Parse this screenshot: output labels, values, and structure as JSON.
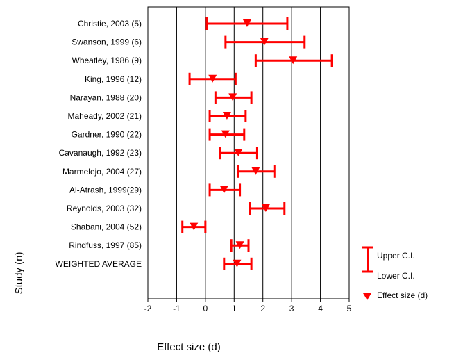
{
  "chart_data": {
    "type": "forest",
    "title": "",
    "xlabel": "Effect size (d)",
    "ylabel": "Study (n)",
    "xlim": [
      -2,
      5
    ],
    "xticks": [
      -2,
      -1,
      0,
      1,
      2,
      3,
      4,
      5
    ],
    "grid": {
      "vertical_lines_at": [
        -1,
        0,
        1,
        2,
        3,
        4
      ]
    },
    "color": "#ff0000",
    "studies": [
      {
        "label": "Christie, 2003 (5)",
        "lower": 0.05,
        "effect": 1.45,
        "upper": 2.85
      },
      {
        "label": "Swanson, 1999 (6)",
        "lower": 0.7,
        "effect": 2.05,
        "upper": 3.45
      },
      {
        "label": "Wheatley, 1986 (9)",
        "lower": 1.75,
        "effect": 3.05,
        "upper": 4.4
      },
      {
        "label": "King, 1996 (12)",
        "lower": -0.55,
        "effect": 0.25,
        "upper": 1.05
      },
      {
        "label": "Narayan, 1988 (20)",
        "lower": 0.35,
        "effect": 0.95,
        "upper": 1.6
      },
      {
        "label": "Maheady, 2002 (21)",
        "lower": 0.15,
        "effect": 0.75,
        "upper": 1.4
      },
      {
        "label": "Gardner, 1990 (22)",
        "lower": 0.15,
        "effect": 0.7,
        "upper": 1.35
      },
      {
        "label": "Cavanaugh, 1992 (23)",
        "lower": 0.5,
        "effect": 1.15,
        "upper": 1.8
      },
      {
        "label": "Marmelejo, 2004 (27)",
        "lower": 1.15,
        "effect": 1.75,
        "upper": 2.4
      },
      {
        "label": "Al-Atrash, 1999(29)",
        "lower": 0.15,
        "effect": 0.65,
        "upper": 1.2
      },
      {
        "label": "Reynolds, 2003 (32)",
        "lower": 1.55,
        "effect": 2.1,
        "upper": 2.75
      },
      {
        "label": "Shabani, 2004 (52)",
        "lower": -0.8,
        "effect": -0.4,
        "upper": 0.0
      },
      {
        "label": "Rindfuss, 1997 (85)",
        "lower": 0.9,
        "effect": 1.2,
        "upper": 1.5
      },
      {
        "label": "WEIGHTED AVERAGE",
        "lower": 0.65,
        "effect": 1.1,
        "upper": 1.6
      }
    ],
    "legend": {
      "placement": "right",
      "upper_ci": "Upper C.I.",
      "lower_ci": "Lower C.I.",
      "effect_size": "Effect size (d)"
    }
  }
}
